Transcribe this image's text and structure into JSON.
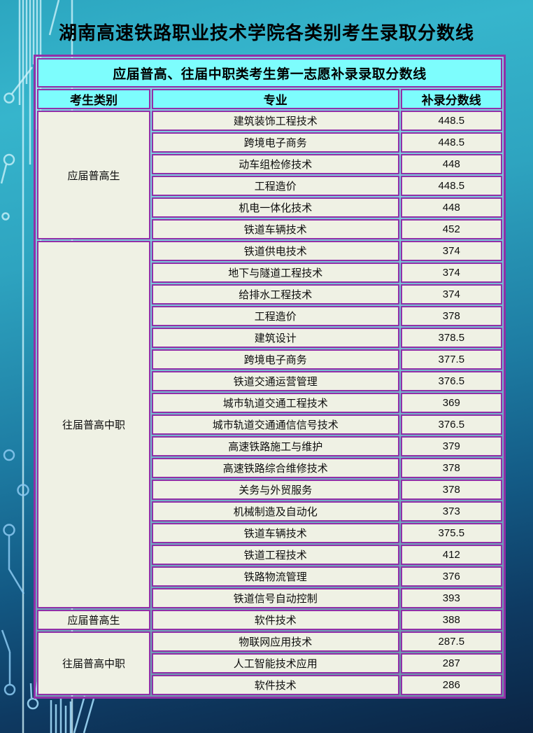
{
  "page_title": "湖南高速铁路职业技术学院各类别考生录取分数线",
  "table": {
    "title": "应届普高、往届中职类考生第一志愿补录录取分数线",
    "columns": [
      "考生类别",
      "专业",
      "补录分数线"
    ],
    "groups": [
      {
        "category": "应届普高生",
        "rows": [
          [
            "建筑装饰工程技术",
            "448.5"
          ],
          [
            "跨境电子商务",
            "448.5"
          ],
          [
            "动车组检修技术",
            "448"
          ],
          [
            "工程造价",
            "448.5"
          ],
          [
            "机电一体化技术",
            "448"
          ],
          [
            "铁道车辆技术",
            "452"
          ]
        ]
      },
      {
        "category": "往届普高中职",
        "rows": [
          [
            "铁道供电技术",
            "374"
          ],
          [
            "地下与隧道工程技术",
            "374"
          ],
          [
            "给排水工程技术",
            "374"
          ],
          [
            "工程造价",
            "378"
          ],
          [
            "建筑设计",
            "378.5"
          ],
          [
            "跨境电子商务",
            "377.5"
          ],
          [
            "铁道交通运营管理",
            "376.5"
          ],
          [
            "城市轨道交通工程技术",
            "369"
          ],
          [
            "城市轨道交通通信信号技术",
            "376.5"
          ],
          [
            "高速铁路施工与维护",
            "379"
          ],
          [
            "高速铁路综合维修技术",
            "378"
          ],
          [
            "关务与外贸服务",
            "378"
          ],
          [
            "机械制造及自动化",
            "373"
          ],
          [
            "铁道车辆技术",
            "375.5"
          ],
          [
            "铁道工程技术",
            "412"
          ],
          [
            "铁路物流管理",
            "376"
          ],
          [
            "铁道信号自动控制",
            "393"
          ]
        ]
      },
      {
        "category": "应届普高生",
        "rows": [
          [
            "软件技术",
            "388"
          ]
        ]
      },
      {
        "category": "往届普高中职",
        "rows": [
          [
            "物联网应用技术",
            "287.5"
          ],
          [
            "人工智能技术应用",
            "287"
          ],
          [
            "软件技术",
            "286"
          ]
        ]
      }
    ]
  },
  "chart_data": {
    "type": "table",
    "title": "应届普高、往届中职类考生第一志愿补录录取分数线",
    "columns": [
      "考生类别",
      "专业",
      "补录分数线"
    ]
  },
  "colors": {
    "border_purple": "#922fa8",
    "header_cyan": "#7dfdfd",
    "cell_offwhite": "#eff1e4",
    "background_top_teal": "#36b5cc",
    "background_bottom_navy": "#0b2443",
    "circuit_trace_light": "#cdf2f8",
    "circuit_trace_blue": "#7fc0ea"
  }
}
